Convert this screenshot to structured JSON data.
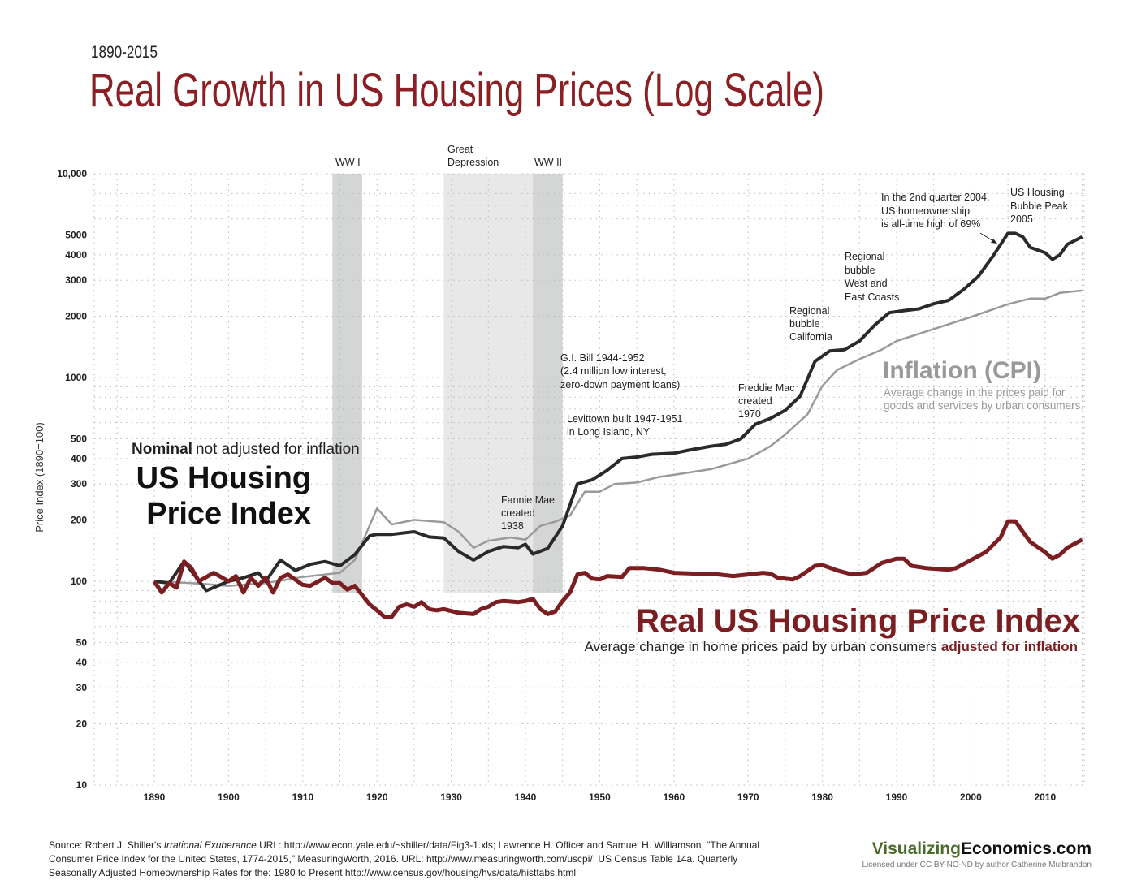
{
  "header": {
    "subtitle": "1890-2015",
    "title": "Real Growth in US Housing Prices (Log Scale)"
  },
  "chart_data": {
    "type": "line",
    "title": "Real Growth in US Housing Prices (Log Scale)",
    "ylabel": "Price Index (1890=100)",
    "xlabel": "",
    "yscale": "log",
    "ylim": [
      10,
      10000
    ],
    "xlim": [
      1882,
      2015
    ],
    "grid": true,
    "x_ticks": [
      "1890",
      "1900",
      "1910",
      "1920",
      "1930",
      "1940",
      "1950",
      "1960",
      "1970",
      "1980",
      "1990",
      "2000",
      "2010"
    ],
    "y_ticks": [
      {
        "v": 10000,
        "label": "10,000"
      },
      {
        "v": 5000,
        "label": "5000"
      },
      {
        "v": 4000,
        "label": "4000"
      },
      {
        "v": 3000,
        "label": "3000"
      },
      {
        "v": 2000,
        "label": "2000"
      },
      {
        "v": 1000,
        "label": "1000"
      },
      {
        "v": 500,
        "label": "500"
      },
      {
        "v": 400,
        "label": "400"
      },
      {
        "v": 300,
        "label": "300"
      },
      {
        "v": 200,
        "label": "200"
      },
      {
        "v": 100,
        "label": "100"
      },
      {
        "v": 50,
        "label": "50"
      },
      {
        "v": 40,
        "label": "40"
      },
      {
        "v": 30,
        "label": "30"
      },
      {
        "v": 20,
        "label": "20"
      },
      {
        "v": 10,
        "label": "10"
      }
    ],
    "shaded_periods": [
      {
        "label": "WW I",
        "start": 1914,
        "end": 1918,
        "color": "#d4d5d5"
      },
      {
        "label": "Great\nDepression",
        "start": 1929,
        "end": 1941,
        "color": "#e8e8e8"
      },
      {
        "label": "WW II",
        "start": 1941,
        "end": 1945,
        "color": "#d4d5d5"
      }
    ],
    "series": [
      {
        "name": "Inflation (CPI)",
        "color": "#9a9a9a",
        "points": [
          [
            1890,
            100
          ],
          [
            1895,
            98
          ],
          [
            1900,
            95
          ],
          [
            1905,
            98
          ],
          [
            1910,
            105
          ],
          [
            1915,
            110
          ],
          [
            1917,
            127
          ],
          [
            1920,
            228
          ],
          [
            1922,
            190
          ],
          [
            1925,
            200
          ],
          [
            1929,
            195
          ],
          [
            1931,
            175
          ],
          [
            1933,
            146
          ],
          [
            1935,
            158
          ],
          [
            1938,
            164
          ],
          [
            1940,
            160
          ],
          [
            1942,
            187
          ],
          [
            1944,
            196
          ],
          [
            1946,
            210
          ],
          [
            1948,
            275
          ],
          [
            1950,
            275
          ],
          [
            1952,
            300
          ],
          [
            1955,
            305
          ],
          [
            1958,
            325
          ],
          [
            1960,
            333
          ],
          [
            1965,
            355
          ],
          [
            1970,
            400
          ],
          [
            1973,
            460
          ],
          [
            1975,
            525
          ],
          [
            1978,
            660
          ],
          [
            1980,
            910
          ],
          [
            1982,
            1090
          ],
          [
            1985,
            1230
          ],
          [
            1988,
            1370
          ],
          [
            1990,
            1510
          ],
          [
            1995,
            1730
          ],
          [
            2000,
            1980
          ],
          [
            2005,
            2290
          ],
          [
            2008,
            2440
          ],
          [
            2010,
            2440
          ],
          [
            2012,
            2600
          ],
          [
            2015,
            2670
          ]
        ]
      },
      {
        "name": "US Housing Price Index",
        "color": "#2a2a2a",
        "points": [
          [
            1890,
            100
          ],
          [
            1892,
            98
          ],
          [
            1894,
            125
          ],
          [
            1897,
            90
          ],
          [
            1900,
            100
          ],
          [
            1902,
            104
          ],
          [
            1904,
            110
          ],
          [
            1905,
            100
          ],
          [
            1907,
            127
          ],
          [
            1909,
            113
          ],
          [
            1911,
            121
          ],
          [
            1913,
            125
          ],
          [
            1915,
            119
          ],
          [
            1917,
            135
          ],
          [
            1919,
            167
          ],
          [
            1920,
            170
          ],
          [
            1922,
            170
          ],
          [
            1925,
            175
          ],
          [
            1927,
            165
          ],
          [
            1929,
            163
          ],
          [
            1931,
            140
          ],
          [
            1933,
            127
          ],
          [
            1935,
            140
          ],
          [
            1937,
            148
          ],
          [
            1939,
            146
          ],
          [
            1940,
            152
          ],
          [
            1941,
            136
          ],
          [
            1943,
            145
          ],
          [
            1945,
            187
          ],
          [
            1947,
            300
          ],
          [
            1949,
            315
          ],
          [
            1951,
            350
          ],
          [
            1953,
            400
          ],
          [
            1955,
            407
          ],
          [
            1957,
            420
          ],
          [
            1960,
            425
          ],
          [
            1962,
            440
          ],
          [
            1965,
            460
          ],
          [
            1967,
            470
          ],
          [
            1969,
            500
          ],
          [
            1971,
            590
          ],
          [
            1973,
            630
          ],
          [
            1975,
            690
          ],
          [
            1977,
            810
          ],
          [
            1979,
            1200
          ],
          [
            1981,
            1350
          ],
          [
            1983,
            1370
          ],
          [
            1985,
            1510
          ],
          [
            1987,
            1800
          ],
          [
            1989,
            2080
          ],
          [
            1991,
            2130
          ],
          [
            1993,
            2170
          ],
          [
            1995,
            2300
          ],
          [
            1997,
            2390
          ],
          [
            1999,
            2700
          ],
          [
            2001,
            3130
          ],
          [
            2003,
            3950
          ],
          [
            2005,
            5100
          ],
          [
            2006,
            5100
          ],
          [
            2007,
            4900
          ],
          [
            2008,
            4350
          ],
          [
            2010,
            4100
          ],
          [
            2011,
            3800
          ],
          [
            2012,
            4000
          ],
          [
            2013,
            4500
          ],
          [
            2015,
            4900
          ]
        ]
      },
      {
        "name": "Real US Housing Price Index",
        "color": "#7b1e22",
        "points": [
          [
            1890,
            100
          ],
          [
            1891,
            88
          ],
          [
            1892,
            98
          ],
          [
            1893,
            93
          ],
          [
            1894,
            125
          ],
          [
            1895,
            116
          ],
          [
            1896,
            100
          ],
          [
            1898,
            110
          ],
          [
            1900,
            100
          ],
          [
            1901,
            106
          ],
          [
            1902,
            88
          ],
          [
            1903,
            104
          ],
          [
            1904,
            95
          ],
          [
            1905,
            104
          ],
          [
            1906,
            88
          ],
          [
            1907,
            104
          ],
          [
            1908,
            108
          ],
          [
            1910,
            96
          ],
          [
            1911,
            95
          ],
          [
            1913,
            104
          ],
          [
            1914,
            98
          ],
          [
            1915,
            98
          ],
          [
            1916,
            91
          ],
          [
            1917,
            95
          ],
          [
            1919,
            77
          ],
          [
            1920,
            72
          ],
          [
            1921,
            67
          ],
          [
            1922,
            67
          ],
          [
            1923,
            75
          ],
          [
            1924,
            77
          ],
          [
            1925,
            75
          ],
          [
            1926,
            79
          ],
          [
            1927,
            73
          ],
          [
            1928,
            72
          ],
          [
            1929,
            73
          ],
          [
            1931,
            70
          ],
          [
            1933,
            69
          ],
          [
            1934,
            73
          ],
          [
            1935,
            75
          ],
          [
            1936,
            79
          ],
          [
            1937,
            80
          ],
          [
            1939,
            79
          ],
          [
            1940,
            80
          ],
          [
            1941,
            82
          ],
          [
            1942,
            73
          ],
          [
            1943,
            69
          ],
          [
            1944,
            71
          ],
          [
            1945,
            80
          ],
          [
            1946,
            88
          ],
          [
            1947,
            108
          ],
          [
            1948,
            110
          ],
          [
            1949,
            103
          ],
          [
            1950,
            102
          ],
          [
            1951,
            106
          ],
          [
            1953,
            105
          ],
          [
            1954,
            116
          ],
          [
            1956,
            116
          ],
          [
            1958,
            114
          ],
          [
            1960,
            110
          ],
          [
            1963,
            109
          ],
          [
            1965,
            109
          ],
          [
            1968,
            106
          ],
          [
            1970,
            108
          ],
          [
            1972,
            110
          ],
          [
            1973,
            109
          ],
          [
            1974,
            104
          ],
          [
            1976,
            102
          ],
          [
            1977,
            106
          ],
          [
            1979,
            119
          ],
          [
            1980,
            120
          ],
          [
            1982,
            113
          ],
          [
            1984,
            108
          ],
          [
            1986,
            110
          ],
          [
            1988,
            123
          ],
          [
            1990,
            129
          ],
          [
            1991,
            129
          ],
          [
            1992,
            119
          ],
          [
            1994,
            116
          ],
          [
            1997,
            114
          ],
          [
            1998,
            116
          ],
          [
            2000,
            127
          ],
          [
            2002,
            139
          ],
          [
            2004,
            164
          ],
          [
            2005,
            197
          ],
          [
            2006,
            197
          ],
          [
            2007,
            175
          ],
          [
            2008,
            156
          ],
          [
            2010,
            139
          ],
          [
            2011,
            129
          ],
          [
            2012,
            135
          ],
          [
            2013,
            146
          ],
          [
            2015,
            160
          ]
        ]
      }
    ]
  },
  "annotations": {
    "ww1": "WW I",
    "depression": [
      "Great",
      "Depression"
    ],
    "ww2": "WW II",
    "gi_bill": [
      "G.I. Bill  1944-1952",
      "(2.4 million low interest,",
      "zero-down payment loans)"
    ],
    "levittown": [
      "Levittown built 1947-1951",
      "in Long Island, NY"
    ],
    "fannie": [
      "Fannie Mae",
      "created",
      "1938"
    ],
    "freddie": [
      "Freddie Mac",
      "created",
      "1970"
    ],
    "california": [
      "Regional",
      "bubble",
      "California"
    ],
    "west_east": [
      "Regional",
      "bubble",
      "West and",
      "East Coasts"
    ],
    "homeownership": [
      "In the 2nd quarter 2004,",
      "US homeownership",
      "is all-time high of 69%"
    ],
    "bubble_peak": [
      "US Housing",
      "Bubble Peak",
      "2005"
    ]
  },
  "labels": {
    "nominal_bold": "Nominal",
    "nominal_rest": "not adjusted for inflation",
    "hpi_line1": "US Housing",
    "hpi_line2": "Price Index",
    "cpi_title": "Inflation (CPI)",
    "cpi_sub1": "Average change in the prices paid for",
    "cpi_sub2": "goods and services by urban consumers",
    "real_title": "Real US Housing Price Index",
    "real_sub": "Average change in home prices paid by urban consumers",
    "real_sub_bold": "adjusted for inflation"
  },
  "footer": {
    "source_prefix": "Source: Robert J. Shiller's ",
    "source_book": "Irrational Exuberance",
    "source_line1_rest": " URL: http://www.econ.yale.edu/~shiller/data/Fig3-1.xls; Lawrence H. Officer and Samuel H. Williamson, \"The Annual",
    "source_line2": "Consumer Price Index for the United States, 1774-2015,\" MeasuringWorth, 2016. URL: http://www.measuringworth.com/uscpi/; US Census Table 14a. Quarterly",
    "source_line3": "Seasonally Adjusted Homeownership Rates for the: 1980 to Present http://www.census.gov/housing/hvs/data/histtabs.html",
    "brand_part1": "Visualizing",
    "brand_part2": "Economics.com",
    "license": "Licensed under CC BY-NC-ND by author Catherine Mulbrandon"
  },
  "colors": {
    "title": "#8b1f24",
    "real": "#7b1e22",
    "nominal": "#2a2a2a",
    "cpi": "#9a9a9a",
    "brand_green": "#4a6b2a"
  }
}
